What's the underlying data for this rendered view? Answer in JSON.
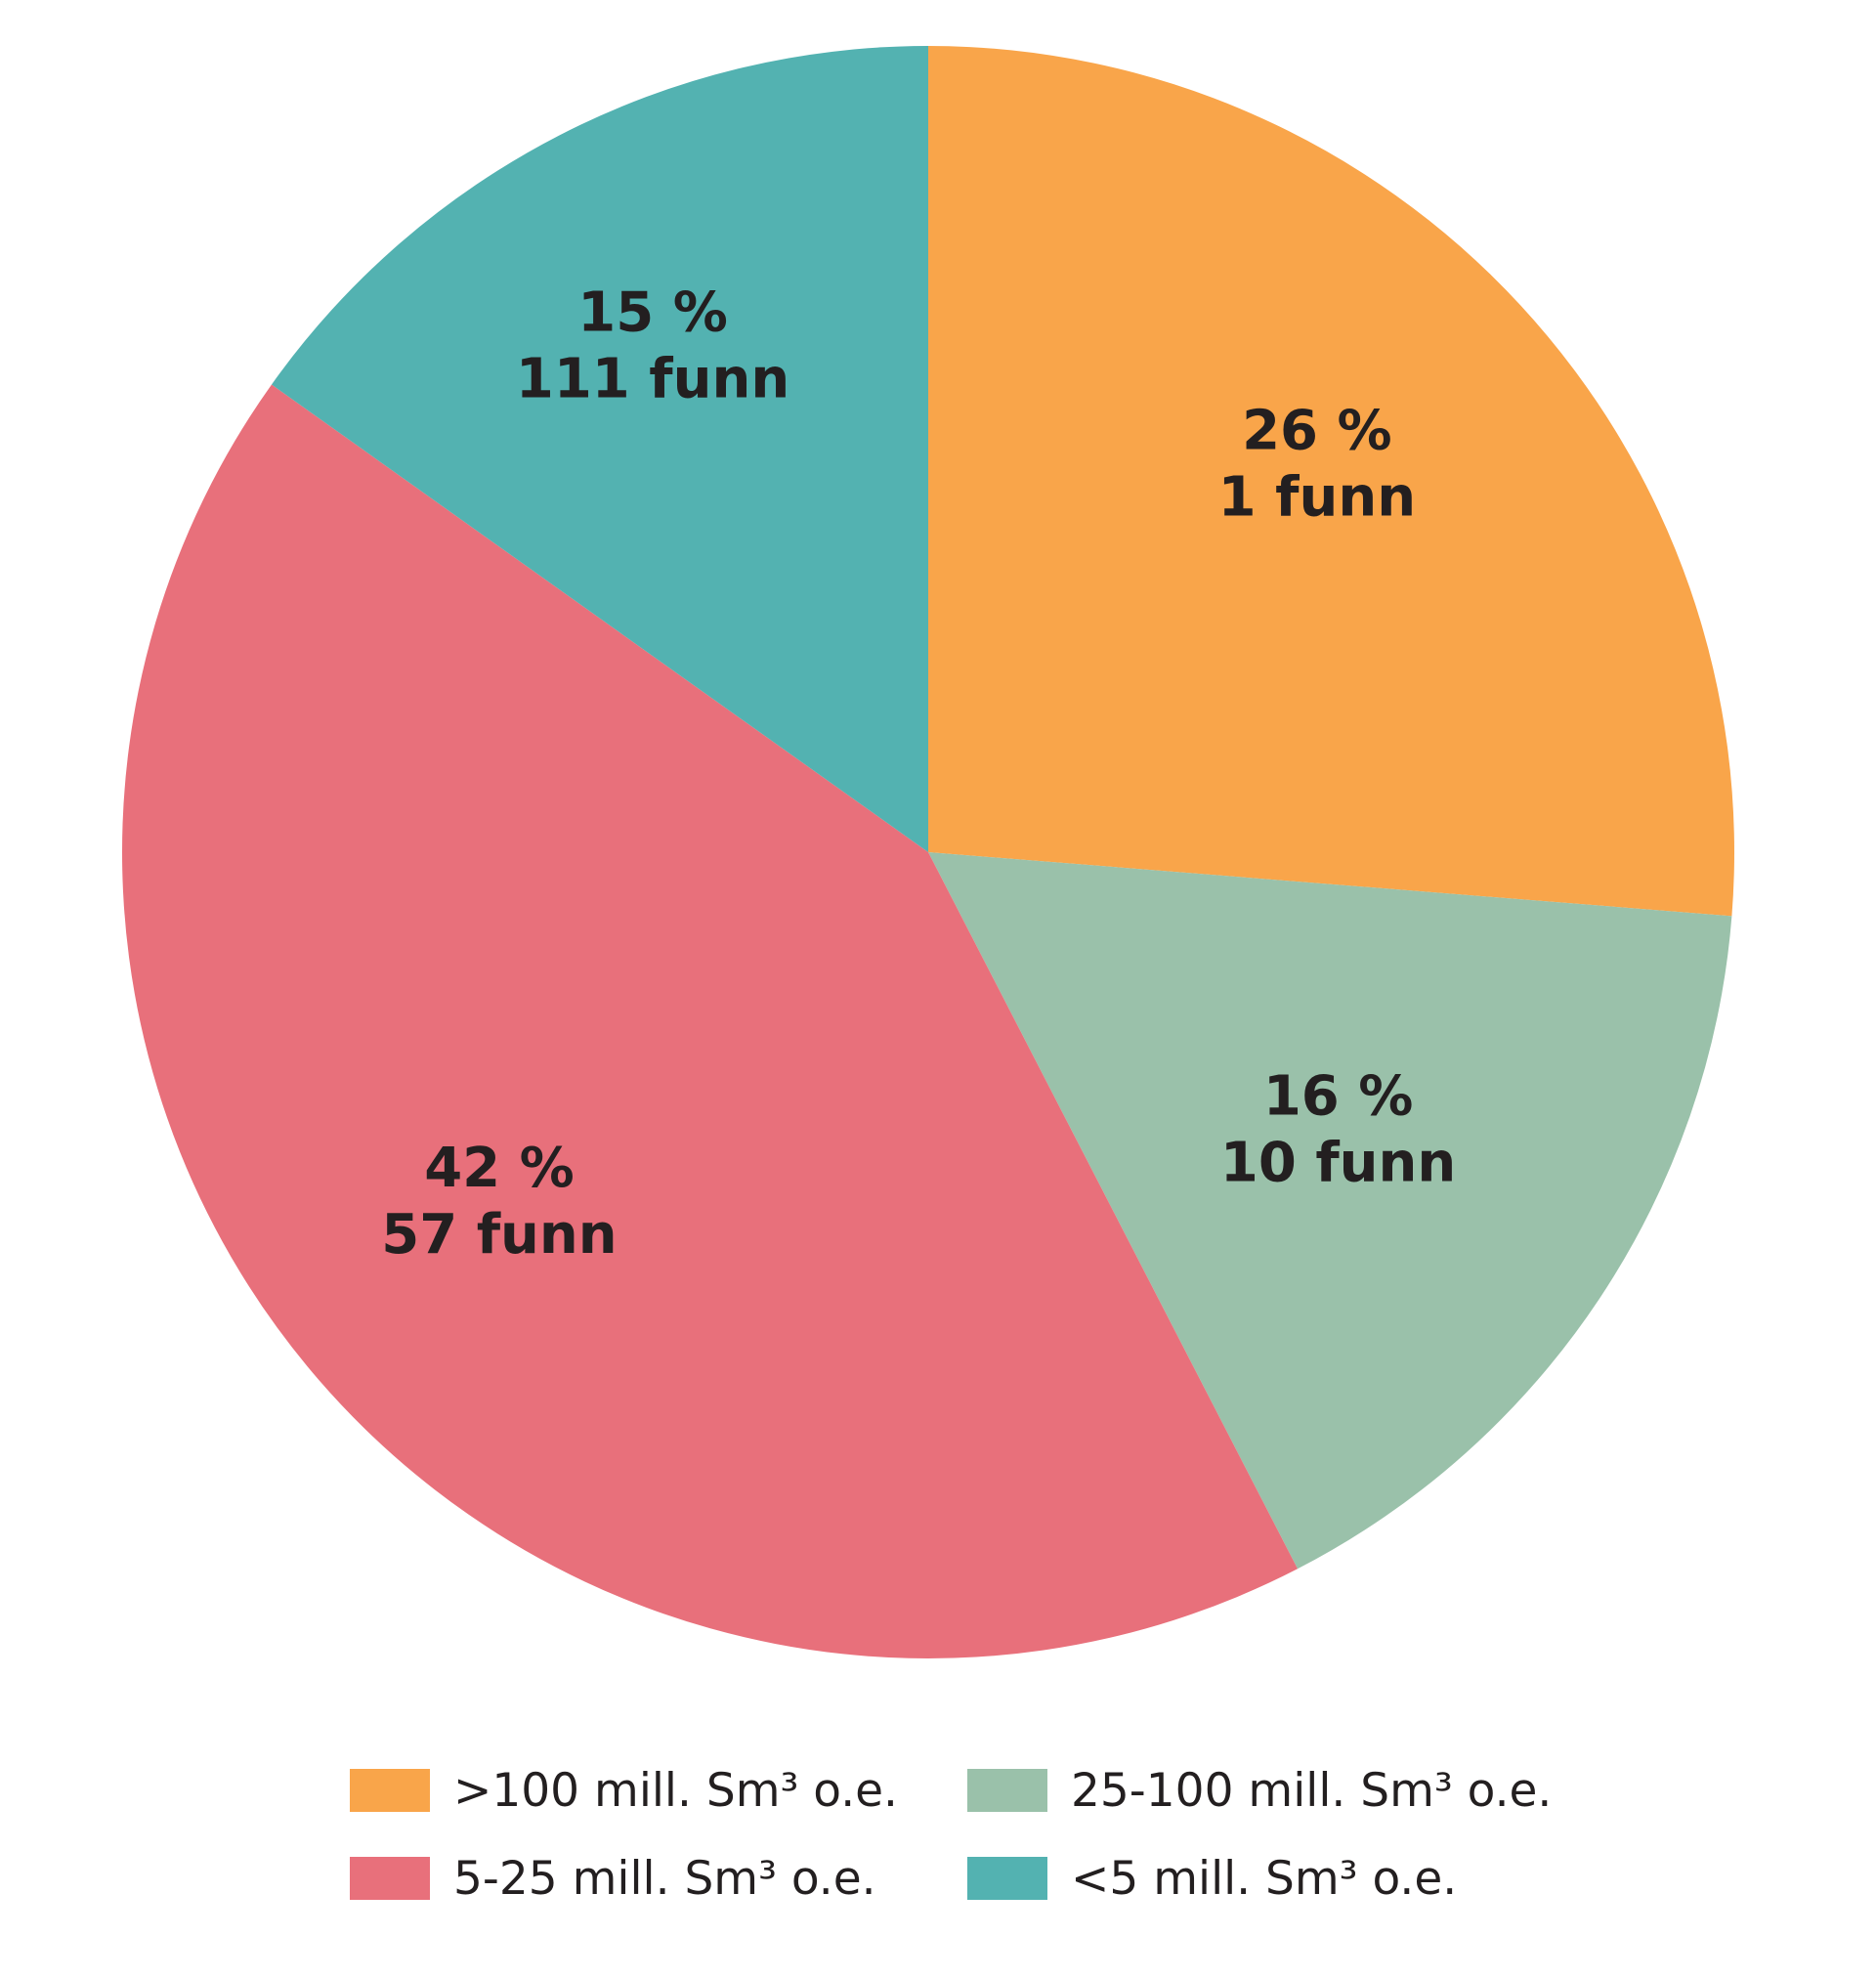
{
  "chart_data": {
    "type": "pie",
    "start_angle_deg": 0,
    "direction": "clockwise",
    "slices": [
      {
        "legend": ">100 mill. Sm³ o.e.",
        "value": 26,
        "percent_label": "26 %",
        "count_label": "1 funn",
        "color": "#f9a54a"
      },
      {
        "legend": "25-100 mill. Sm³ o.e.",
        "value": 16,
        "percent_label": "16 %",
        "count_label": "10 funn",
        "color": "#9ac1aa"
      },
      {
        "legend": "5-25 mill. Sm³ o.e.",
        "value": 42,
        "percent_label": "42 %",
        "count_label": "57 funn",
        "color": "#e8707b"
      },
      {
        "legend": "<5 mill. Sm³ o.e.",
        "value": 15,
        "percent_label": "15 %",
        "count_label": "111 funn",
        "color": "#53b2b1"
      }
    ],
    "legend": {
      "placement": "bottom",
      "order": [
        0,
        1,
        2,
        3
      ]
    }
  }
}
